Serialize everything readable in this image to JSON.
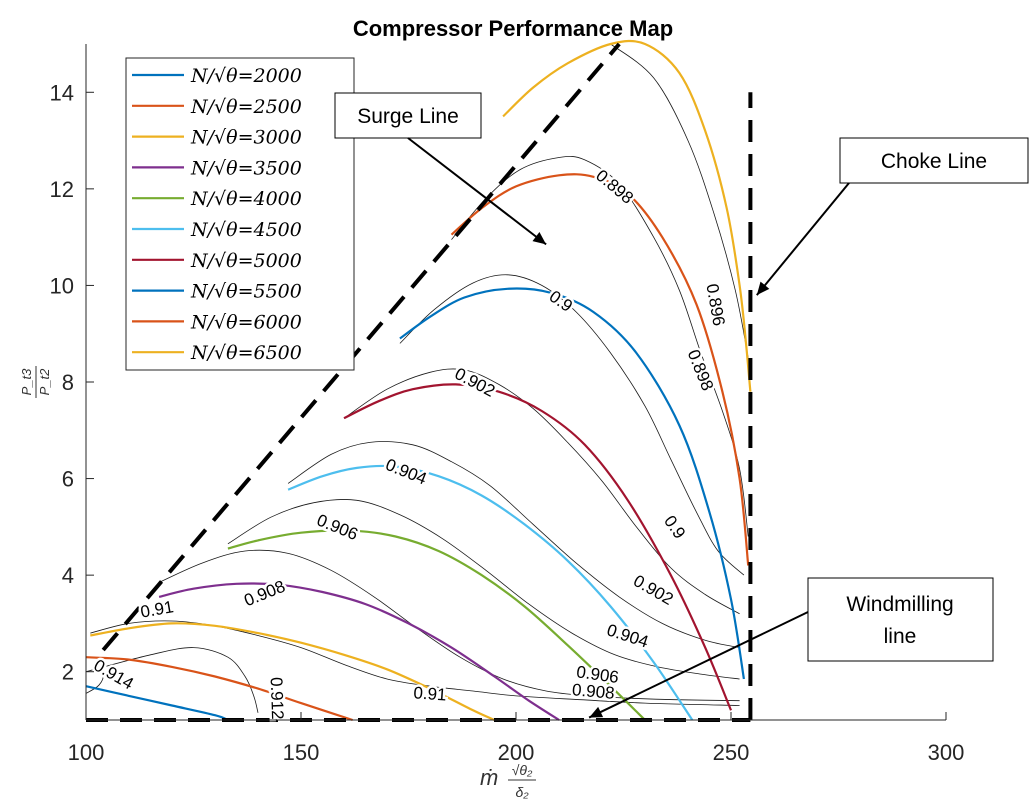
{
  "chart_data": {
    "type": "line",
    "title": "Compressor Performance Map",
    "xlabel": {
      "base": "ṁ",
      "num": "√θ₂",
      "den": "δ₂"
    },
    "ylabel": {
      "num": "P_t3",
      "den": "P_t2"
    },
    "xlim": [
      100,
      300
    ],
    "ylim": [
      1,
      15
    ],
    "xticks": [
      100,
      150,
      200,
      250,
      300
    ],
    "yticks": [
      2,
      4,
      6,
      8,
      10,
      12,
      14
    ],
    "grid": false,
    "legend": {
      "placement": "top-left",
      "prefix": "N/√θ="
    },
    "series": [
      {
        "name": "2000",
        "color": "#0072BD",
        "points": [
          [
            100,
            1.7
          ],
          [
            110,
            1.5
          ],
          [
            120,
            1.3
          ],
          [
            130,
            1.1
          ],
          [
            133,
            1.0
          ]
        ]
      },
      {
        "name": "2500",
        "color": "#D95319",
        "points": [
          [
            100,
            2.3
          ],
          [
            110,
            2.25
          ],
          [
            120,
            2.1
          ],
          [
            130,
            1.9
          ],
          [
            140,
            1.65
          ],
          [
            150,
            1.35
          ],
          [
            162,
            1.0
          ]
        ]
      },
      {
        "name": "3000",
        "color": "#EDB120",
        "points": [
          [
            101,
            2.75
          ],
          [
            110,
            2.9
          ],
          [
            120,
            3.0
          ],
          [
            130,
            2.95
          ],
          [
            140,
            2.8
          ],
          [
            150,
            2.6
          ],
          [
            160,
            2.35
          ],
          [
            170,
            2.05
          ],
          [
            180,
            1.65
          ],
          [
            190,
            1.2
          ],
          [
            195,
            1.0
          ]
        ]
      },
      {
        "name": "3500",
        "color": "#7E2F8E",
        "points": [
          [
            117,
            3.55
          ],
          [
            125,
            3.72
          ],
          [
            135,
            3.82
          ],
          [
            145,
            3.8
          ],
          [
            155,
            3.65
          ],
          [
            165,
            3.4
          ],
          [
            175,
            3.0
          ],
          [
            185,
            2.5
          ],
          [
            195,
            1.9
          ],
          [
            203,
            1.4
          ],
          [
            210,
            1.0
          ]
        ]
      },
      {
        "name": "4000",
        "color": "#77AC30",
        "points": [
          [
            133,
            4.55
          ],
          [
            140,
            4.72
          ],
          [
            150,
            4.88
          ],
          [
            162,
            4.92
          ],
          [
            172,
            4.8
          ],
          [
            182,
            4.5
          ],
          [
            192,
            4.0
          ],
          [
            202,
            3.35
          ],
          [
            212,
            2.55
          ],
          [
            222,
            1.7
          ],
          [
            230,
            1.0
          ]
        ]
      },
      {
        "name": "4500",
        "color": "#4DBEEE",
        "points": [
          [
            147,
            5.77
          ],
          [
            155,
            6.05
          ],
          [
            163,
            6.22
          ],
          [
            172,
            6.25
          ],
          [
            182,
            6.05
          ],
          [
            192,
            5.65
          ],
          [
            202,
            5.05
          ],
          [
            212,
            4.3
          ],
          [
            222,
            3.35
          ],
          [
            232,
            2.2
          ],
          [
            241,
            1.0
          ]
        ]
      },
      {
        "name": "5000",
        "color": "#A2142F",
        "points": [
          [
            160,
            7.25
          ],
          [
            168,
            7.6
          ],
          [
            176,
            7.85
          ],
          [
            186,
            7.95
          ],
          [
            196,
            7.8
          ],
          [
            206,
            7.4
          ],
          [
            216,
            6.7
          ],
          [
            226,
            5.55
          ],
          [
            236,
            4.0
          ],
          [
            244,
            2.5
          ],
          [
            250,
            1.2
          ]
        ]
      },
      {
        "name": "5500",
        "color": "#0072BD",
        "points": [
          [
            173,
            8.9
          ],
          [
            180,
            9.35
          ],
          [
            188,
            9.75
          ],
          [
            198,
            9.93
          ],
          [
            208,
            9.85
          ],
          [
            218,
            9.45
          ],
          [
            228,
            8.6
          ],
          [
            238,
            7.1
          ],
          [
            245,
            5.3
          ],
          [
            250,
            3.5
          ],
          [
            253,
            1.85
          ]
        ]
      },
      {
        "name": "6000",
        "color": "#D95319",
        "points": [
          [
            185,
            11.05
          ],
          [
            192,
            11.6
          ],
          [
            200,
            12.05
          ],
          [
            210,
            12.28
          ],
          [
            218,
            12.25
          ],
          [
            226,
            11.9
          ],
          [
            234,
            11.0
          ],
          [
            242,
            9.6
          ],
          [
            248,
            7.8
          ],
          [
            252,
            6.0
          ],
          [
            254,
            4.2
          ]
        ]
      },
      {
        "name": "6500",
        "color": "#EDB120",
        "points": [
          [
            197,
            13.5
          ],
          [
            204,
            14.1
          ],
          [
            212,
            14.6
          ],
          [
            222,
            15.0
          ],
          [
            230,
            15.0
          ],
          [
            238,
            14.4
          ],
          [
            244,
            13.2
          ],
          [
            249,
            11.6
          ],
          [
            252,
            10.0
          ],
          [
            253.5,
            8.8
          ],
          [
            254.5,
            7.8
          ]
        ]
      }
    ],
    "efficiency_contours": [
      {
        "label": "0.896",
        "points": [
          [
            222,
            15.0
          ],
          [
            232,
            14.3
          ],
          [
            240,
            13.0
          ],
          [
            246,
            11.5
          ],
          [
            251,
            9.9
          ],
          [
            254,
            8.5
          ]
        ],
        "label_at": [
          246.5,
          9.6
        ],
        "label_angle": 80
      },
      {
        "label": "0.898",
        "points": [
          [
            185,
            10.95
          ],
          [
            193,
            11.8
          ],
          [
            201,
            12.4
          ],
          [
            210,
            12.65
          ],
          [
            216,
            12.6
          ],
          [
            224,
            12.1
          ],
          [
            232,
            11.0
          ],
          [
            238,
            9.9
          ],
          [
            243,
            8.6
          ],
          [
            248,
            7.4
          ],
          [
            252,
            6.2
          ],
          [
            254,
            4.8
          ]
        ],
        "label_at": [
          243,
          8.25
        ],
        "label_angle": 68,
        "label2_at": [
          223,
          12.05
        ],
        "label2_angle": 40
      },
      {
        "label": "0.9",
        "points": [
          [
            173,
            8.8
          ],
          [
            181,
            9.5
          ],
          [
            190,
            10.05
          ],
          [
            198,
            10.22
          ],
          [
            206,
            10.0
          ],
          [
            214,
            9.45
          ],
          [
            222,
            8.6
          ],
          [
            230,
            7.5
          ],
          [
            236,
            6.4
          ],
          [
            242,
            5.3
          ],
          [
            247,
            4.5
          ],
          [
            253,
            4.0
          ]
        ],
        "label_at": [
          237,
          5.0
        ],
        "label_angle": 55,
        "label2_at": [
          210.5,
          9.68
        ],
        "label2_angle": 35
      },
      {
        "label": "0.902",
        "points": [
          [
            160,
            7.25
          ],
          [
            170,
            7.85
          ],
          [
            180,
            8.2
          ],
          [
            188,
            8.25
          ],
          [
            196,
            7.95
          ],
          [
            204,
            7.45
          ],
          [
            212,
            6.75
          ],
          [
            220,
            5.95
          ],
          [
            228,
            5.0
          ],
          [
            236,
            4.15
          ],
          [
            244,
            3.6
          ],
          [
            252,
            3.2
          ]
        ],
        "label_at": [
          232,
          3.7
        ],
        "label_angle": 30,
        "label2_at": [
          190.5,
          8.0
        ],
        "label2_angle": 28
      },
      {
        "label": "0.904",
        "points": [
          [
            147,
            5.9
          ],
          [
            157,
            6.5
          ],
          [
            166,
            6.75
          ],
          [
            176,
            6.7
          ],
          [
            185,
            6.35
          ],
          [
            194,
            5.85
          ],
          [
            204,
            5.05
          ],
          [
            214,
            4.25
          ],
          [
            224,
            3.55
          ],
          [
            234,
            3.0
          ],
          [
            244,
            2.65
          ],
          [
            252,
            2.5
          ]
        ],
        "label_at": [
          226,
          2.75
        ],
        "label_angle": 18,
        "label2_at": [
          174.5,
          6.15
        ],
        "label2_angle": 22
      },
      {
        "label": "0.906",
        "points": [
          [
            133,
            4.65
          ],
          [
            143,
            5.2
          ],
          [
            153,
            5.5
          ],
          [
            163,
            5.55
          ],
          [
            173,
            5.25
          ],
          [
            183,
            4.75
          ],
          [
            193,
            4.1
          ],
          [
            203,
            3.4
          ],
          [
            213,
            2.8
          ],
          [
            223,
            2.35
          ],
          [
            233,
            2.1
          ],
          [
            243,
            1.95
          ],
          [
            252,
            1.85
          ]
        ],
        "label_at": [
          219,
          1.95
        ],
        "label_angle": 8,
        "label2_at": [
          158.5,
          5.0
        ],
        "label2_angle": 22
      },
      {
        "label": "0.908",
        "points": [
          [
            117,
            3.85
          ],
          [
            127,
            4.25
          ],
          [
            137,
            4.5
          ],
          [
            147,
            4.45
          ],
          [
            157,
            4.1
          ],
          [
            167,
            3.55
          ],
          [
            177,
            2.9
          ],
          [
            187,
            2.3
          ],
          [
            197,
            1.85
          ],
          [
            207,
            1.6
          ],
          [
            217,
            1.5
          ],
          [
            227,
            1.45
          ],
          [
            237,
            1.42
          ],
          [
            252,
            1.4
          ]
        ],
        "label_at": [
          218,
          1.6
        ],
        "label_angle": 5,
        "label2_at": [
          141.5,
          3.63
        ],
        "label2_angle": -22
      },
      {
        "label": "0.91",
        "points": [
          [
            101,
            2.8
          ],
          [
            110,
            3.0
          ],
          [
            120,
            3.05
          ],
          [
            130,
            2.95
          ],
          [
            140,
            2.75
          ],
          [
            150,
            2.5
          ],
          [
            160,
            2.15
          ],
          [
            170,
            1.85
          ],
          [
            180,
            1.7
          ],
          [
            190,
            1.6
          ],
          [
            200,
            1.5
          ],
          [
            215,
            1.42
          ],
          [
            230,
            1.35
          ],
          [
            252,
            1.3
          ]
        ],
        "label_at": [
          180,
          1.55
        ],
        "label_angle": 4,
        "label2_at": [
          116.5,
          3.3
        ],
        "label2_angle": -10
      },
      {
        "label": "0.912",
        "points": [
          [
            100,
            2.0
          ],
          [
            115,
            2.35
          ],
          [
            125,
            2.5
          ],
          [
            133,
            2.3
          ],
          [
            137,
            1.9
          ],
          [
            139,
            1.5
          ],
          [
            140,
            1.15
          ]
        ],
        "label_at": [
          144.5,
          1.45
        ],
        "label_angle": 88
      },
      {
        "label": "0.914",
        "points": [
          [
            100,
            1.55
          ],
          [
            103,
            1.72
          ],
          [
            104,
            1.95
          ],
          [
            102,
            2.2
          ]
        ],
        "label_at": [
          106.5,
          1.95
        ],
        "label_angle": 30
      }
    ],
    "reference_lines": [
      {
        "name": "Surge Line",
        "style": "dashed",
        "points": [
          [
            104,
            2.45
          ],
          [
            224,
            15.0
          ]
        ]
      },
      {
        "name": "Choke Line",
        "style": "dashed",
        "points": [
          [
            254.5,
            1.0
          ],
          [
            254.5,
            14.0
          ]
        ]
      },
      {
        "name": "Windmilling line",
        "style": "dashed",
        "points": [
          [
            100,
            1.0
          ],
          [
            254.5,
            1.0
          ]
        ]
      }
    ],
    "annotations": [
      {
        "text": "Surge Line",
        "arrow_to": [
          207,
          10.85
        ]
      },
      {
        "text": "Choke Line",
        "arrow_to": [
          256,
          9.8
        ]
      },
      {
        "text": "Windmilling line",
        "arrow_to": [
          217,
          1.05
        ]
      }
    ]
  }
}
